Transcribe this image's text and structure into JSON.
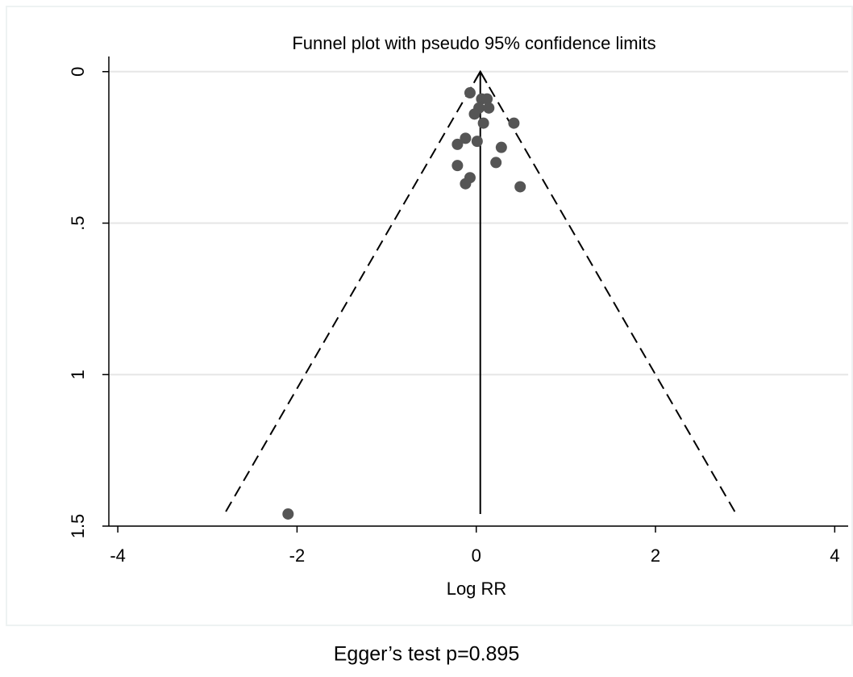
{
  "chart_data": {
    "type": "funnel",
    "title": "Funnel plot with pseudo 95% confidence limits",
    "x_label": "Log RR",
    "footnote": "Egger’s test p=0.895",
    "x": [
      -0.07,
      0.06,
      0.12,
      0.03,
      0.14,
      -0.02,
      0.08,
      0.42,
      -0.12,
      0.01,
      -0.21,
      0.28,
      -0.21,
      0.22,
      -0.07,
      -0.12,
      0.49,
      -2.1
    ],
    "values": [
      0.07,
      0.09,
      0.09,
      0.12,
      0.12,
      0.14,
      0.17,
      0.17,
      0.22,
      0.23,
      0.24,
      0.25,
      0.31,
      0.3,
      0.35,
      0.37,
      0.38,
      1.46
    ],
    "color": "#555555",
    "funnel": {
      "center": 0.045,
      "apex_se": 0,
      "se_end": 1.46,
      "lower_x": -2.81,
      "upper_x": 2.9
    },
    "xlim": [
      -4.1,
      4.15
    ],
    "xticks": [
      -4,
      -2,
      0,
      2,
      4
    ],
    "ylim": [
      -0.05,
      1.5
    ],
    "y_reversed": true,
    "yticks": [
      0,
      {
        "value": 0.5,
        "label": ".5"
      },
      1,
      1.5
    ],
    "grid": true
  }
}
